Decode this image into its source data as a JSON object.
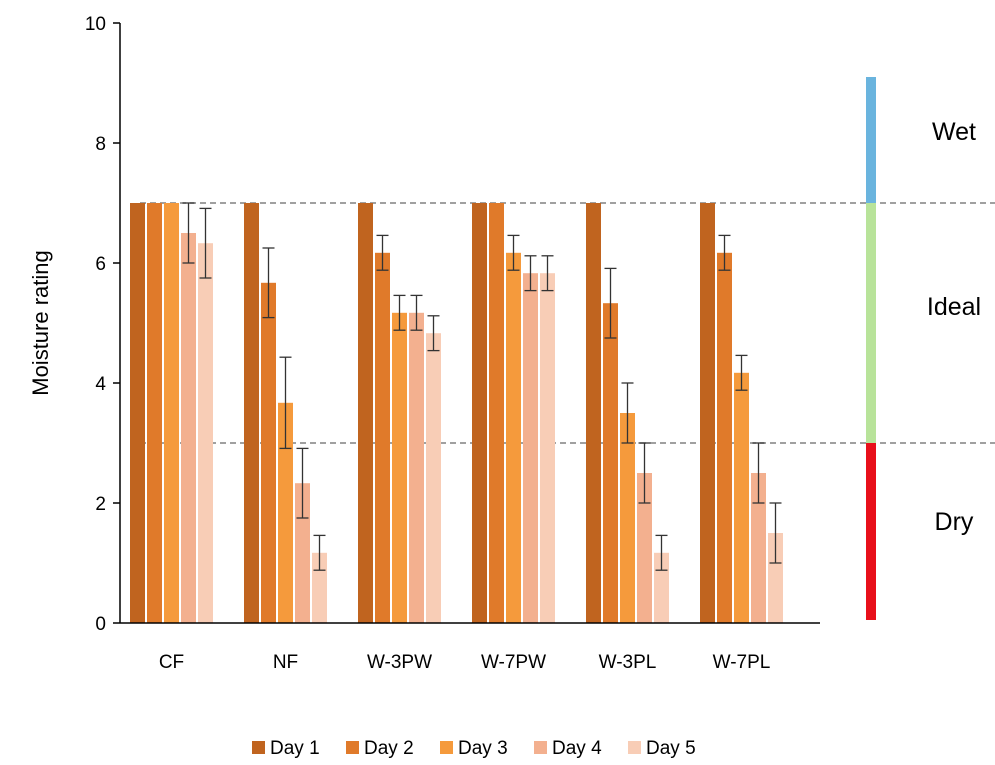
{
  "chart_data": {
    "type": "bar",
    "title": "",
    "xlabel": "",
    "ylabel": "Moisture rating",
    "ylim": [
      0,
      10
    ],
    "yticks": [
      "0",
      "2",
      "4",
      "6",
      "8",
      "10"
    ],
    "categories": [
      "CF",
      "NF",
      "W-3PW",
      "W-7PW",
      "W-3PL",
      "W-7PL"
    ],
    "series": [
      {
        "name": "Day 1",
        "color": "#c0641f",
        "values": [
          7,
          7,
          7,
          7,
          7,
          7
        ],
        "errors": [
          0,
          0,
          0,
          0,
          0,
          0
        ]
      },
      {
        "name": "Day 2",
        "color": "#e07a2a",
        "values": [
          7,
          5.67,
          6.17,
          7,
          5.33,
          6.17
        ],
        "errors": [
          0,
          0.58,
          0.29,
          0,
          0.58,
          0.29
        ]
      },
      {
        "name": "Day 3",
        "color": "#f59a3c",
        "values": [
          7,
          3.67,
          5.17,
          6.17,
          3.5,
          4.17
        ],
        "errors": [
          0,
          0.76,
          0.29,
          0.29,
          0.5,
          0.29
        ]
      },
      {
        "name": "Day 4",
        "color": "#f3b08f",
        "values": [
          6.5,
          2.33,
          5.17,
          5.83,
          2.5,
          2.5
        ],
        "errors": [
          0.5,
          0.58,
          0.29,
          0.29,
          0.5,
          0.5
        ]
      },
      {
        "name": "Day 5",
        "color": "#f8cdb6",
        "values": [
          6.33,
          1.17,
          4.83,
          5.83,
          1.17,
          1.5
        ],
        "errors": [
          0.58,
          0.29,
          0.29,
          0.29,
          0.29,
          0.5
        ]
      }
    ],
    "reference_lines": [
      7,
      3
    ],
    "zones": [
      {
        "label": "Wet",
        "from": 7,
        "to": 9.1,
        "color": "#6ab4de"
      },
      {
        "label": "Ideal",
        "from": 3,
        "to": 7,
        "color": "#b8e39a"
      },
      {
        "label": "Dry",
        "from": 0.05,
        "to": 3,
        "color": "#e8101a"
      }
    ],
    "legend": "bottom",
    "grid": false
  }
}
